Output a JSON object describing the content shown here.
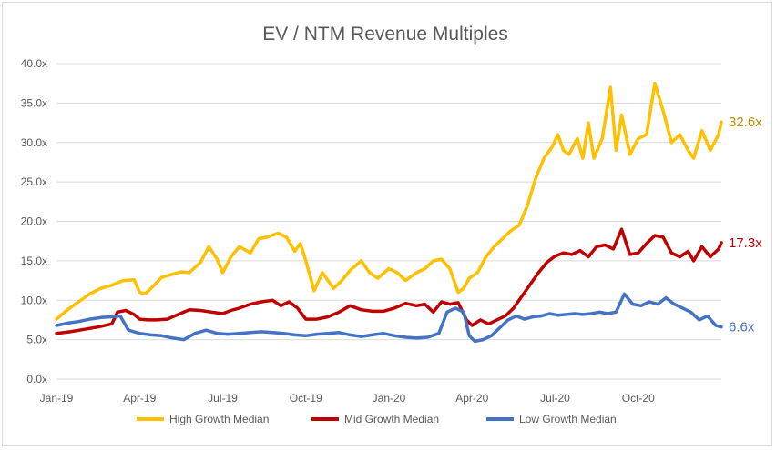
{
  "chart_data": {
    "type": "line",
    "title": "EV / NTM Revenue Multiples",
    "xlabel": "",
    "ylabel": "",
    "ylim": [
      0,
      40
    ],
    "yticks": [
      0,
      5,
      10,
      15,
      20,
      25,
      30,
      35,
      40
    ],
    "ytick_labels": [
      "0.0x",
      "5.0x",
      "10.0x",
      "15.0x",
      "20.0x",
      "25.0x",
      "30.0x",
      "35.0x",
      "40.0x"
    ],
    "xlim": [
      0,
      24
    ],
    "xticks": [
      0,
      3,
      6,
      9,
      12,
      15,
      18,
      21
    ],
    "xtick_labels": [
      "Jan-19",
      "Apr-19",
      "Jul-19",
      "Oct-19",
      "Jan-20",
      "Apr-20",
      "Jul-20",
      "Oct-20"
    ],
    "x_unit_note": "",
    "grid": {
      "horizontal": true,
      "vertical": false
    },
    "legend": "bottom",
    "series": [
      {
        "name": "High Growth Median",
        "color": "#FFC000",
        "end_label": "32.6x",
        "x": [
          0,
          0.4,
          0.8,
          1.2,
          1.6,
          2.0,
          2.4,
          2.8,
          3.0,
          3.2,
          3.5,
          3.8,
          4.2,
          4.5,
          4.8,
          5.2,
          5.5,
          5.8,
          6.0,
          6.3,
          6.6,
          7.0,
          7.3,
          7.6,
          8.0,
          8.3,
          8.6,
          8.8,
          9.0,
          9.3,
          9.6,
          10.0,
          10.3,
          10.6,
          11.0,
          11.3,
          11.6,
          12.0,
          12.3,
          12.6,
          13.0,
          13.3,
          13.6,
          13.9,
          14.2,
          14.5,
          14.7,
          14.9,
          15.2,
          15.5,
          15.8,
          16.1,
          16.4,
          16.7,
          17.0,
          17.3,
          17.6,
          17.9,
          18.1,
          18.3,
          18.5,
          18.8,
          19.0,
          19.2,
          19.4,
          19.7,
          20.0,
          20.2,
          20.4,
          20.7,
          21.0,
          21.3,
          21.6,
          21.9,
          22.2,
          22.5,
          22.8,
          23.0,
          23.3,
          23.6,
          23.9,
          24.0
        ],
        "values": [
          7.6,
          8.8,
          9.8,
          10.8,
          11.5,
          11.9,
          12.5,
          12.6,
          11.0,
          10.8,
          11.8,
          12.9,
          13.3,
          13.6,
          13.5,
          14.8,
          16.8,
          15.2,
          13.5,
          15.5,
          16.8,
          16.0,
          17.8,
          18.0,
          18.5,
          18.0,
          16.2,
          17.2,
          15.0,
          11.2,
          13.5,
          11.5,
          12.5,
          13.8,
          15.0,
          13.5,
          12.8,
          14.0,
          13.5,
          12.5,
          13.5,
          14.0,
          15.0,
          15.2,
          14.0,
          11.0,
          11.5,
          12.8,
          13.5,
          15.5,
          16.8,
          17.8,
          18.8,
          19.5,
          22.0,
          25.5,
          28.0,
          29.5,
          31.0,
          29.0,
          28.5,
          30.5,
          28.0,
          32.5,
          28.0,
          30.5,
          37.0,
          29.0,
          33.5,
          28.5,
          30.5,
          31.0,
          37.5,
          34.0,
          30.0,
          31.0,
          29.0,
          28.0,
          31.5,
          29.0,
          31.0,
          32.6
        ]
      },
      {
        "name": "Mid Growth Median",
        "color": "#C00000",
        "end_label": "17.3x",
        "x": [
          0,
          0.5,
          1.0,
          1.5,
          2.0,
          2.2,
          2.5,
          2.8,
          3.0,
          3.3,
          3.6,
          4.0,
          4.4,
          4.8,
          5.2,
          5.6,
          6.0,
          6.3,
          6.6,
          7.0,
          7.4,
          7.8,
          8.1,
          8.4,
          8.7,
          9.0,
          9.4,
          9.8,
          10.2,
          10.6,
          11.0,
          11.4,
          11.8,
          12.2,
          12.6,
          13.0,
          13.3,
          13.6,
          13.9,
          14.2,
          14.5,
          14.8,
          15.0,
          15.3,
          15.6,
          15.9,
          16.2,
          16.5,
          16.8,
          17.1,
          17.4,
          17.7,
          18.0,
          18.3,
          18.6,
          18.9,
          19.2,
          19.5,
          19.8,
          20.1,
          20.4,
          20.7,
          21.0,
          21.3,
          21.6,
          21.9,
          22.2,
          22.5,
          22.8,
          23.0,
          23.3,
          23.6,
          23.9,
          24.0
        ],
        "values": [
          5.8,
          6.0,
          6.3,
          6.6,
          7.0,
          8.5,
          8.7,
          8.2,
          7.6,
          7.5,
          7.5,
          7.6,
          8.2,
          8.8,
          8.7,
          8.5,
          8.3,
          8.7,
          9.0,
          9.5,
          9.8,
          10.0,
          9.3,
          9.8,
          9.0,
          7.6,
          7.6,
          7.9,
          8.5,
          9.3,
          8.8,
          8.6,
          8.6,
          9.0,
          9.6,
          9.3,
          9.5,
          8.5,
          9.8,
          9.5,
          9.7,
          7.5,
          6.8,
          7.5,
          7.0,
          7.5,
          8.0,
          9.0,
          10.5,
          12.0,
          13.5,
          14.8,
          15.6,
          16.0,
          15.8,
          16.3,
          15.5,
          16.8,
          17.0,
          16.5,
          19.0,
          15.8,
          16.0,
          17.2,
          18.2,
          18.0,
          16.0,
          15.5,
          16.2,
          15.0,
          16.8,
          15.5,
          16.5,
          17.3
        ]
      },
      {
        "name": "Low Growth Median",
        "color": "#4472C4",
        "end_label": "6.6x",
        "x": [
          0,
          0.4,
          0.8,
          1.2,
          1.6,
          2.0,
          2.3,
          2.6,
          3.0,
          3.4,
          3.8,
          4.2,
          4.6,
          5.0,
          5.4,
          5.8,
          6.2,
          6.6,
          7.0,
          7.4,
          7.8,
          8.2,
          8.6,
          9.0,
          9.4,
          9.8,
          10.2,
          10.6,
          11.0,
          11.4,
          11.8,
          12.2,
          12.6,
          13.0,
          13.4,
          13.8,
          14.1,
          14.4,
          14.7,
          14.9,
          15.1,
          15.4,
          15.7,
          16.0,
          16.3,
          16.6,
          16.9,
          17.2,
          17.5,
          17.8,
          18.1,
          18.4,
          18.7,
          19.0,
          19.3,
          19.6,
          19.9,
          20.2,
          20.5,
          20.8,
          21.1,
          21.4,
          21.7,
          22.0,
          22.3,
          22.6,
          22.9,
          23.2,
          23.5,
          23.8,
          24.0
        ],
        "values": [
          6.8,
          7.1,
          7.3,
          7.6,
          7.8,
          7.9,
          8.0,
          6.2,
          5.8,
          5.6,
          5.5,
          5.2,
          5.0,
          5.8,
          6.2,
          5.8,
          5.7,
          5.8,
          5.9,
          6.0,
          5.9,
          5.8,
          5.6,
          5.5,
          5.7,
          5.8,
          5.9,
          5.6,
          5.4,
          5.6,
          5.8,
          5.5,
          5.3,
          5.2,
          5.3,
          5.8,
          8.5,
          9.0,
          8.5,
          5.5,
          4.8,
          5.0,
          5.5,
          6.5,
          7.5,
          8.0,
          7.6,
          7.9,
          8.0,
          8.3,
          8.1,
          8.2,
          8.3,
          8.2,
          8.3,
          8.5,
          8.3,
          8.5,
          10.8,
          9.5,
          9.3,
          9.8,
          9.5,
          10.3,
          9.5,
          9.0,
          8.5,
          7.5,
          8.0,
          6.8,
          6.6
        ]
      }
    ]
  }
}
